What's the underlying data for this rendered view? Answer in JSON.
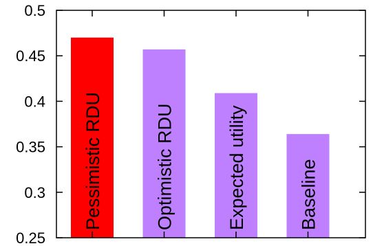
{
  "chart_data": {
    "type": "bar",
    "title": "",
    "xlabel": "",
    "ylabel": "",
    "categories": [
      "Pessimistic RDU",
      "Optimistic RDU",
      "Expected utility",
      "Baseline"
    ],
    "values": [
      0.47,
      0.457,
      0.409,
      0.364
    ],
    "bar_colors": [
      "#ff0000",
      "#bf80ff",
      "#bf80ff",
      "#bf80ff"
    ],
    "ylim": [
      0.25,
      0.5
    ],
    "yticks": [
      0.25,
      0.3,
      0.35,
      0.4,
      0.45,
      0.5
    ],
    "ytick_labels": [
      "0.25",
      "0.3",
      "0.35",
      "0.4",
      "0.45",
      "0.5"
    ],
    "grid": false,
    "legend": "none",
    "labels_inside_bars": true
  }
}
